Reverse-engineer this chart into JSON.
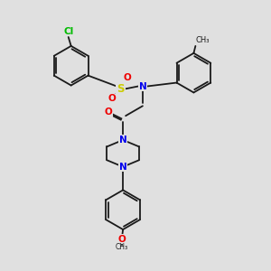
{
  "background_color": "#e0e0e0",
  "bond_color": "#1a1a1a",
  "atom_colors": {
    "Cl": "#00bb00",
    "S": "#cccc00",
    "N": "#0000ee",
    "O": "#ee0000",
    "C": "#1a1a1a"
  },
  "figsize": [
    3.0,
    3.0
  ],
  "dpi": 100,
  "lw": 1.3,
  "fs_hetero": 7.5,
  "fs_label": 5.5
}
